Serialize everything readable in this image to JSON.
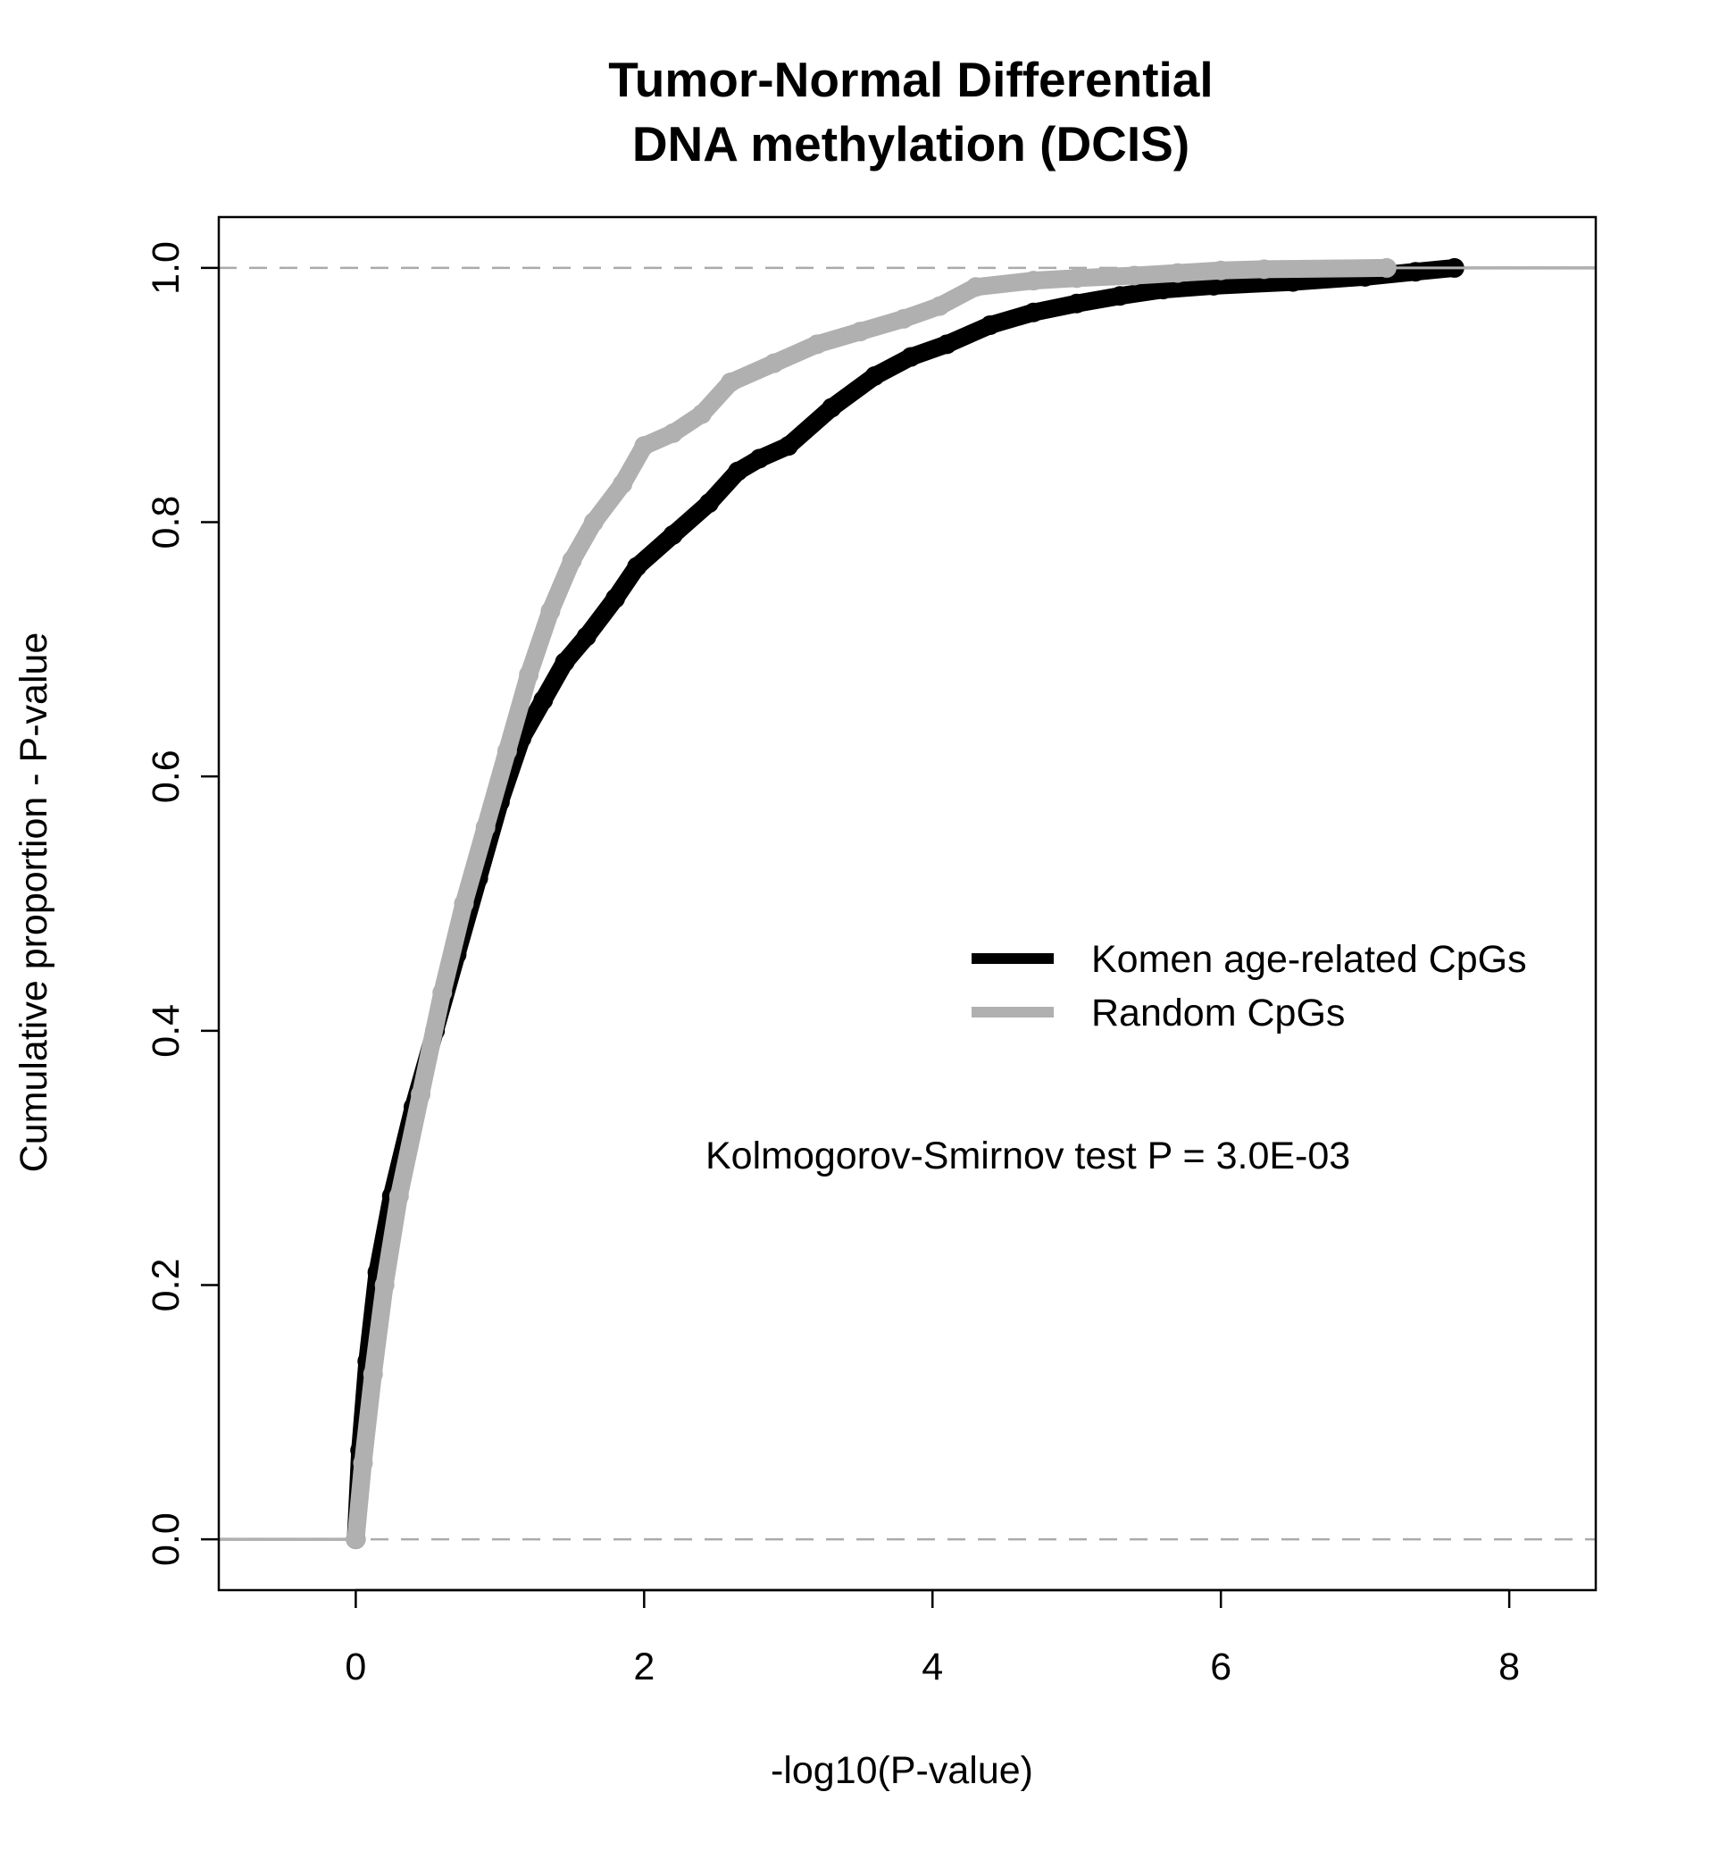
{
  "chart_data": {
    "type": "line",
    "title": [
      "Tumor-Normal Differential",
      "DNA methylation (DCIS)"
    ],
    "xlabel": "-log10(P-value)",
    "ylabel": "Cumulative proportion - P-value",
    "xlim": [
      -0.95,
      8.6
    ],
    "ylim": [
      -0.04,
      1.04
    ],
    "xticks": [
      0,
      2,
      4,
      6,
      8
    ],
    "yticks": [
      0.0,
      0.2,
      0.4,
      0.6,
      0.8,
      1.0
    ],
    "xtick_labels": [
      "0",
      "2",
      "4",
      "6",
      "8"
    ],
    "ytick_labels": [
      "0.0",
      "0.2",
      "0.4",
      "0.6",
      "0.8",
      "1.0"
    ],
    "reference_lines": [
      0,
      1
    ],
    "legend_position": "right",
    "annotation": "Kolmogorov-Smirnov test P = 3.0E-03",
    "series": [
      {
        "name": "Komen age-related CpGs",
        "color": "#000000",
        "x": [
          0,
          0.03,
          0.08,
          0.15,
          0.25,
          0.4,
          0.55,
          0.7,
          0.85,
          1.0,
          1.15,
          1.3,
          1.45,
          1.6,
          1.8,
          1.95,
          2.2,
          2.45,
          2.65,
          2.8,
          3.0,
          3.3,
          3.6,
          3.85,
          4.1,
          4.4,
          4.7,
          5.0,
          5.3,
          5.6,
          5.95,
          6.5,
          7.0,
          7.35,
          7.62
        ],
        "y": [
          0.0,
          0.07,
          0.14,
          0.21,
          0.27,
          0.34,
          0.4,
          0.46,
          0.52,
          0.58,
          0.63,
          0.66,
          0.69,
          0.71,
          0.74,
          0.765,
          0.79,
          0.815,
          0.84,
          0.85,
          0.86,
          0.89,
          0.915,
          0.93,
          0.94,
          0.955,
          0.965,
          0.972,
          0.978,
          0.983,
          0.986,
          0.989,
          0.993,
          0.997,
          1.0
        ]
      },
      {
        "name": "Random CpGs",
        "color": "#b0b0b0",
        "x": [
          0,
          0.05,
          0.12,
          0.2,
          0.3,
          0.45,
          0.6,
          0.75,
          0.9,
          1.05,
          1.2,
          1.35,
          1.5,
          1.65,
          1.85,
          2.0,
          2.2,
          2.4,
          2.6,
          2.9,
          3.2,
          3.5,
          3.8,
          4.05,
          4.3,
          4.7,
          5.0,
          5.4,
          5.7,
          6.0,
          6.3,
          7.15
        ],
        "y": [
          0.0,
          0.06,
          0.13,
          0.2,
          0.27,
          0.35,
          0.43,
          0.5,
          0.56,
          0.62,
          0.68,
          0.73,
          0.77,
          0.8,
          0.83,
          0.86,
          0.87,
          0.885,
          0.91,
          0.925,
          0.94,
          0.95,
          0.96,
          0.97,
          0.985,
          0.99,
          0.992,
          0.994,
          0.996,
          0.998,
          0.999,
          1.0
        ]
      }
    ]
  }
}
